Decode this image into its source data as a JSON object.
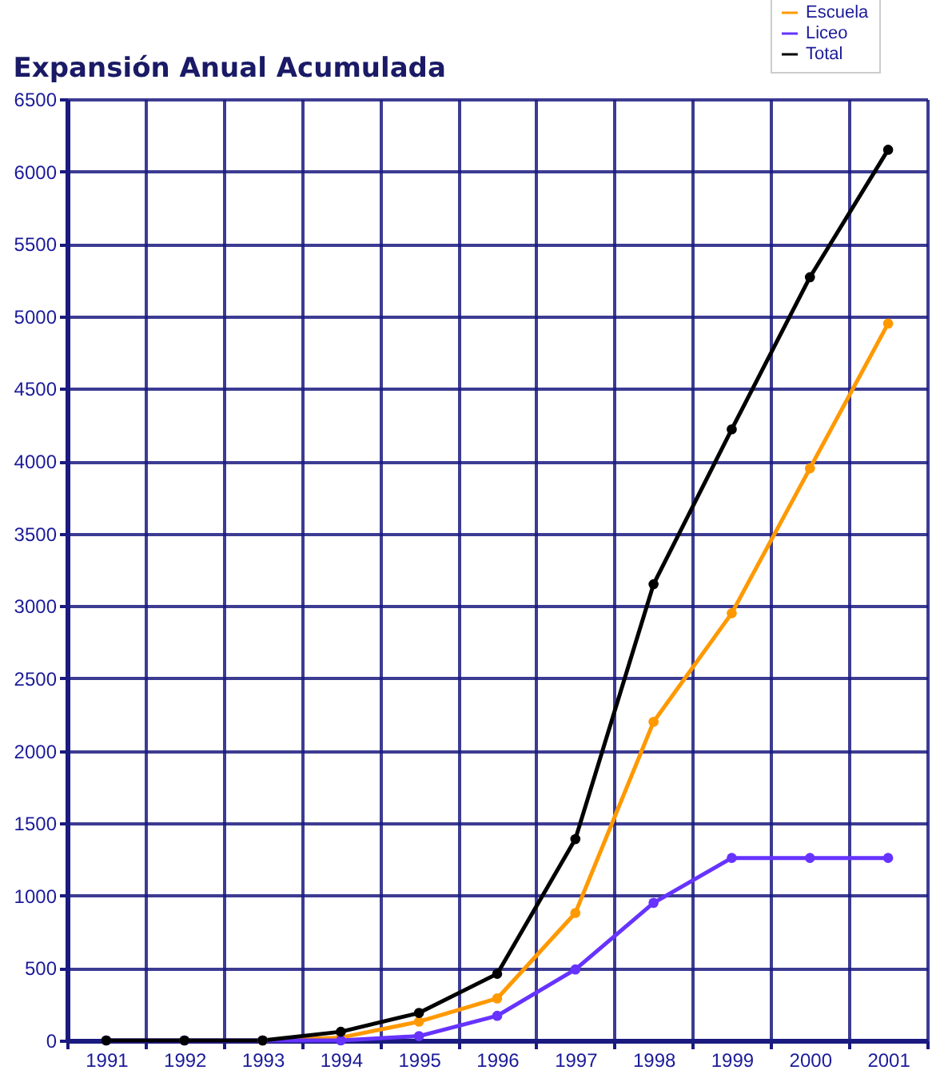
{
  "chart_data": {
    "type": "line",
    "title": "Expansión Anual Acumulada",
    "categories": [
      "1991",
      "1992",
      "1993",
      "1994",
      "1995",
      "1996",
      "1997",
      "1998",
      "1999",
      "2000",
      "2001"
    ],
    "series": [
      {
        "name": "Escuela",
        "color": "#ff9900",
        "values": [
          null,
          null,
          0,
          20,
          130,
          290,
          880,
          2200,
          2950,
          3950,
          4950
        ]
      },
      {
        "name": "Liceo",
        "color": "#6633ff",
        "values": [
          0,
          0,
          0,
          0,
          30,
          170,
          490,
          950,
          1260,
          1260,
          1260
        ]
      },
      {
        "name": "Total",
        "color": "#000000",
        "values": [
          0,
          0,
          0,
          60,
          190,
          460,
          1390,
          3150,
          4220,
          5270,
          6150
        ]
      }
    ],
    "ylim": [
      0,
      6500
    ],
    "yticks": [
      0,
      500,
      1000,
      1500,
      2000,
      2500,
      3000,
      3500,
      4000,
      4500,
      5000,
      5500,
      6000,
      6500
    ],
    "grid": true,
    "legend": "top right",
    "marker": "circle"
  }
}
